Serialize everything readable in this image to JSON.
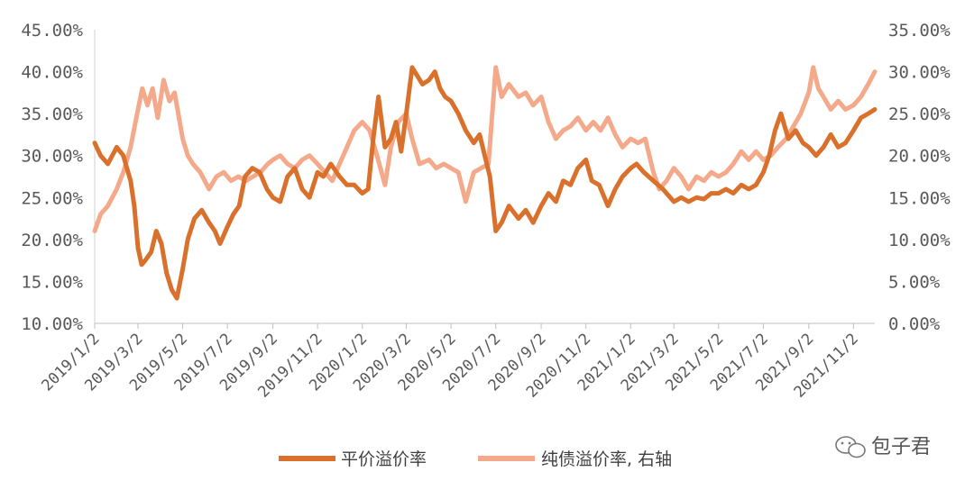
{
  "chart_data": {
    "type": "line",
    "title": "",
    "xlabel": "",
    "ylabel_left": "",
    "ylabel_right": "",
    "x_range": [
      "2019-01-02",
      "2021-12-01"
    ],
    "y_left": {
      "range": [
        10,
        45
      ],
      "ticks": [
        "10.00%",
        "15.00%",
        "20.00%",
        "25.00%",
        "30.00%",
        "35.00%",
        "40.00%",
        "45.00%"
      ]
    },
    "y_right": {
      "range": [
        0,
        35
      ],
      "ticks": [
        "0.00%",
        "5.00%",
        "10.00%",
        "15.00%",
        "20.00%",
        "25.00%",
        "30.00%",
        "35.00%"
      ]
    },
    "x_ticks": [
      "2019/1/2",
      "2019/3/2",
      "2019/5/2",
      "2019/7/2",
      "2019/9/2",
      "2019/11/2",
      "2020/1/2",
      "2020/3/2",
      "2020/5/2",
      "2020/7/2",
      "2020/9/2",
      "2020/11/2",
      "2021/1/2",
      "2021/3/2",
      "2021/5/2",
      "2021/7/2",
      "2021/9/2",
      "2021/11/2"
    ],
    "legend_position": "bottom",
    "grid": false,
    "series": [
      {
        "name": "平价溢价率",
        "axis": "left",
        "color": "#D9712C",
        "points": [
          [
            "2019-01-02",
            31.5
          ],
          [
            "2019-01-10",
            30.0
          ],
          [
            "2019-01-20",
            29.0
          ],
          [
            "2019-02-01",
            31.0
          ],
          [
            "2019-02-10",
            30.0
          ],
          [
            "2019-02-20",
            27.0
          ],
          [
            "2019-02-25",
            24.0
          ],
          [
            "2019-03-02",
            19.0
          ],
          [
            "2019-03-07",
            17.0
          ],
          [
            "2019-03-12",
            17.5
          ],
          [
            "2019-03-20",
            18.5
          ],
          [
            "2019-03-27",
            21.0
          ],
          [
            "2019-04-03",
            19.5
          ],
          [
            "2019-04-10",
            16.0
          ],
          [
            "2019-04-17",
            14.0
          ],
          [
            "2019-04-24",
            13.0
          ],
          [
            "2019-05-02",
            16.5
          ],
          [
            "2019-05-09",
            20.0
          ],
          [
            "2019-05-18",
            22.5
          ],
          [
            "2019-05-28",
            23.5
          ],
          [
            "2019-06-07",
            22.0
          ],
          [
            "2019-06-15",
            21.0
          ],
          [
            "2019-06-22",
            19.5
          ],
          [
            "2019-07-02",
            21.5
          ],
          [
            "2019-07-10",
            23.0
          ],
          [
            "2019-07-18",
            24.0
          ],
          [
            "2019-07-26",
            27.5
          ],
          [
            "2019-08-05",
            28.5
          ],
          [
            "2019-08-15",
            28.0
          ],
          [
            "2019-08-25",
            26.0
          ],
          [
            "2019-09-02",
            25.0
          ],
          [
            "2019-09-12",
            24.5
          ],
          [
            "2019-09-22",
            27.5
          ],
          [
            "2019-10-02",
            28.5
          ],
          [
            "2019-10-12",
            26.0
          ],
          [
            "2019-10-22",
            25.0
          ],
          [
            "2019-11-02",
            28.0
          ],
          [
            "2019-11-10",
            27.5
          ],
          [
            "2019-11-20",
            29.0
          ],
          [
            "2019-12-02",
            27.5
          ],
          [
            "2019-12-12",
            26.5
          ],
          [
            "2019-12-22",
            26.5
          ],
          [
            "2020-01-02",
            25.5
          ],
          [
            "2020-01-10",
            26.0
          ],
          [
            "2020-01-17",
            32.0
          ],
          [
            "2020-01-24",
            37.0
          ],
          [
            "2020-02-02",
            31.0
          ],
          [
            "2020-02-10",
            32.0
          ],
          [
            "2020-02-17",
            34.0
          ],
          [
            "2020-02-24",
            30.5
          ],
          [
            "2020-03-02",
            35.0
          ],
          [
            "2020-03-10",
            40.5
          ],
          [
            "2020-03-17",
            39.5
          ],
          [
            "2020-03-24",
            38.5
          ],
          [
            "2020-04-02",
            39.0
          ],
          [
            "2020-04-10",
            40.0
          ],
          [
            "2020-04-17",
            38.0
          ],
          [
            "2020-04-24",
            37.0
          ],
          [
            "2020-05-02",
            36.5
          ],
          [
            "2020-05-12",
            35.0
          ],
          [
            "2020-05-22",
            33.0
          ],
          [
            "2020-06-02",
            31.5
          ],
          [
            "2020-06-10",
            32.5
          ],
          [
            "2020-06-17",
            30.0
          ],
          [
            "2020-06-24",
            27.5
          ],
          [
            "2020-07-02",
            21.0
          ],
          [
            "2020-07-10",
            22.0
          ],
          [
            "2020-07-20",
            24.0
          ],
          [
            "2020-08-02",
            22.5
          ],
          [
            "2020-08-12",
            23.5
          ],
          [
            "2020-08-22",
            22.0
          ],
          [
            "2020-09-02",
            24.0
          ],
          [
            "2020-09-12",
            25.5
          ],
          [
            "2020-09-22",
            24.5
          ],
          [
            "2020-10-02",
            27.0
          ],
          [
            "2020-10-12",
            26.5
          ],
          [
            "2020-10-22",
            28.5
          ],
          [
            "2020-11-02",
            29.5
          ],
          [
            "2020-11-10",
            27.0
          ],
          [
            "2020-11-20",
            26.5
          ],
          [
            "2020-12-02",
            24.0
          ],
          [
            "2020-12-12",
            26.0
          ],
          [
            "2020-12-22",
            27.5
          ],
          [
            "2021-01-02",
            28.5
          ],
          [
            "2021-01-10",
            29.0
          ],
          [
            "2021-01-20",
            28.0
          ],
          [
            "2021-02-02",
            27.0
          ],
          [
            "2021-02-15",
            26.0
          ],
          [
            "2021-02-25",
            25.0
          ],
          [
            "2021-03-02",
            24.5
          ],
          [
            "2021-03-12",
            25.0
          ],
          [
            "2021-03-22",
            24.5
          ],
          [
            "2021-04-02",
            25.0
          ],
          [
            "2021-04-12",
            24.8
          ],
          [
            "2021-04-22",
            25.5
          ],
          [
            "2021-05-02",
            25.5
          ],
          [
            "2021-05-12",
            26.0
          ],
          [
            "2021-05-22",
            25.5
          ],
          [
            "2021-06-02",
            26.5
          ],
          [
            "2021-06-12",
            26.0
          ],
          [
            "2021-06-22",
            26.5
          ],
          [
            "2021-07-02",
            28.0
          ],
          [
            "2021-07-10",
            30.0
          ],
          [
            "2021-07-18",
            33.0
          ],
          [
            "2021-07-26",
            35.0
          ],
          [
            "2021-08-05",
            32.0
          ],
          [
            "2021-08-15",
            33.0
          ],
          [
            "2021-08-25",
            31.5
          ],
          [
            "2021-09-02",
            31.0
          ],
          [
            "2021-09-12",
            30.0
          ],
          [
            "2021-09-22",
            31.0
          ],
          [
            "2021-10-02",
            32.5
          ],
          [
            "2021-10-12",
            31.0
          ],
          [
            "2021-10-22",
            31.5
          ],
          [
            "2021-11-02",
            33.0
          ],
          [
            "2021-11-12",
            34.5
          ],
          [
            "2021-11-22",
            35.0
          ],
          [
            "2021-12-01",
            35.5
          ]
        ]
      },
      {
        "name": "纯债溢价率, 右轴",
        "axis": "right",
        "color": "#F4A98A",
        "points": [
          [
            "2019-01-02",
            11.0
          ],
          [
            "2019-01-10",
            13.0
          ],
          [
            "2019-01-20",
            14.0
          ],
          [
            "2019-02-01",
            16.0
          ],
          [
            "2019-02-10",
            18.0
          ],
          [
            "2019-02-20",
            21.0
          ],
          [
            "2019-03-02",
            25.5
          ],
          [
            "2019-03-08",
            28.0
          ],
          [
            "2019-03-15",
            26.0
          ],
          [
            "2019-03-22",
            28.0
          ],
          [
            "2019-03-29",
            24.5
          ],
          [
            "2019-04-06",
            29.0
          ],
          [
            "2019-04-14",
            26.5
          ],
          [
            "2019-04-21",
            27.5
          ],
          [
            "2019-04-28",
            24.0
          ],
          [
            "2019-05-02",
            22.0
          ],
          [
            "2019-05-09",
            20.0
          ],
          [
            "2019-05-16",
            19.0
          ],
          [
            "2019-05-26",
            18.0
          ],
          [
            "2019-06-07",
            16.0
          ],
          [
            "2019-06-17",
            17.5
          ],
          [
            "2019-06-27",
            18.0
          ],
          [
            "2019-07-07",
            17.0
          ],
          [
            "2019-07-17",
            17.5
          ],
          [
            "2019-07-27",
            17.0
          ],
          [
            "2019-08-06",
            17.5
          ],
          [
            "2019-08-16",
            18.0
          ],
          [
            "2019-08-26",
            19.0
          ],
          [
            "2019-09-02",
            19.5
          ],
          [
            "2019-09-12",
            20.0
          ],
          [
            "2019-09-22",
            19.0
          ],
          [
            "2019-10-02",
            18.5
          ],
          [
            "2019-10-12",
            19.5
          ],
          [
            "2019-10-22",
            20.0
          ],
          [
            "2019-11-02",
            19.0
          ],
          [
            "2019-11-12",
            18.0
          ],
          [
            "2019-11-22",
            17.0
          ],
          [
            "2019-12-02",
            19.0
          ],
          [
            "2019-12-12",
            21.0
          ],
          [
            "2019-12-22",
            23.0
          ],
          [
            "2020-01-02",
            24.0
          ],
          [
            "2020-01-12",
            23.0
          ],
          [
            "2020-01-22",
            20.0
          ],
          [
            "2020-02-02",
            16.5
          ],
          [
            "2020-02-10",
            21.0
          ],
          [
            "2020-02-20",
            24.0
          ],
          [
            "2020-03-02",
            25.0
          ],
          [
            "2020-03-10",
            22.0
          ],
          [
            "2020-03-20",
            19.0
          ],
          [
            "2020-04-02",
            19.5
          ],
          [
            "2020-04-12",
            18.5
          ],
          [
            "2020-04-22",
            19.0
          ],
          [
            "2020-05-02",
            18.5
          ],
          [
            "2020-05-12",
            18.0
          ],
          [
            "2020-05-22",
            14.5
          ],
          [
            "2020-06-02",
            18.0
          ],
          [
            "2020-06-12",
            18.5
          ],
          [
            "2020-06-22",
            19.0
          ],
          [
            "2020-07-02",
            30.5
          ],
          [
            "2020-07-10",
            27.0
          ],
          [
            "2020-07-20",
            28.5
          ],
          [
            "2020-08-02",
            27.0
          ],
          [
            "2020-08-12",
            27.5
          ],
          [
            "2020-08-22",
            26.0
          ],
          [
            "2020-09-02",
            27.0
          ],
          [
            "2020-09-12",
            24.0
          ],
          [
            "2020-09-22",
            22.0
          ],
          [
            "2020-10-02",
            23.0
          ],
          [
            "2020-10-12",
            23.5
          ],
          [
            "2020-10-22",
            24.5
          ],
          [
            "2020-11-02",
            23.0
          ],
          [
            "2020-11-12",
            24.0
          ],
          [
            "2020-11-22",
            23.0
          ],
          [
            "2020-12-02",
            24.5
          ],
          [
            "2020-12-12",
            22.5
          ],
          [
            "2020-12-22",
            21.0
          ],
          [
            "2021-01-02",
            22.0
          ],
          [
            "2021-01-12",
            21.5
          ],
          [
            "2021-01-22",
            22.0
          ],
          [
            "2021-02-02",
            18.0
          ],
          [
            "2021-02-10",
            16.0
          ],
          [
            "2021-02-20",
            17.0
          ],
          [
            "2021-03-02",
            18.5
          ],
          [
            "2021-03-12",
            17.5
          ],
          [
            "2021-03-22",
            16.0
          ],
          [
            "2021-04-02",
            17.5
          ],
          [
            "2021-04-12",
            17.0
          ],
          [
            "2021-04-22",
            18.0
          ],
          [
            "2021-05-02",
            17.5
          ],
          [
            "2021-05-12",
            18.0
          ],
          [
            "2021-05-22",
            19.0
          ],
          [
            "2021-06-02",
            20.5
          ],
          [
            "2021-06-12",
            19.5
          ],
          [
            "2021-06-22",
            20.5
          ],
          [
            "2021-07-02",
            19.5
          ],
          [
            "2021-07-12",
            20.0
          ],
          [
            "2021-07-22",
            21.0
          ],
          [
            "2021-08-02",
            22.0
          ],
          [
            "2021-08-12",
            23.5
          ],
          [
            "2021-08-22",
            25.0
          ],
          [
            "2021-09-02",
            27.5
          ],
          [
            "2021-09-08",
            30.5
          ],
          [
            "2021-09-15",
            28.0
          ],
          [
            "2021-09-22",
            27.0
          ],
          [
            "2021-10-02",
            25.5
          ],
          [
            "2021-10-12",
            26.5
          ],
          [
            "2021-10-22",
            25.5
          ],
          [
            "2021-11-02",
            26.0
          ],
          [
            "2021-11-12",
            27.0
          ],
          [
            "2021-11-22",
            28.5
          ],
          [
            "2021-12-01",
            30.0
          ]
        ]
      }
    ]
  },
  "watermark": {
    "text": "包子君",
    "icon": "wechat-icon"
  }
}
